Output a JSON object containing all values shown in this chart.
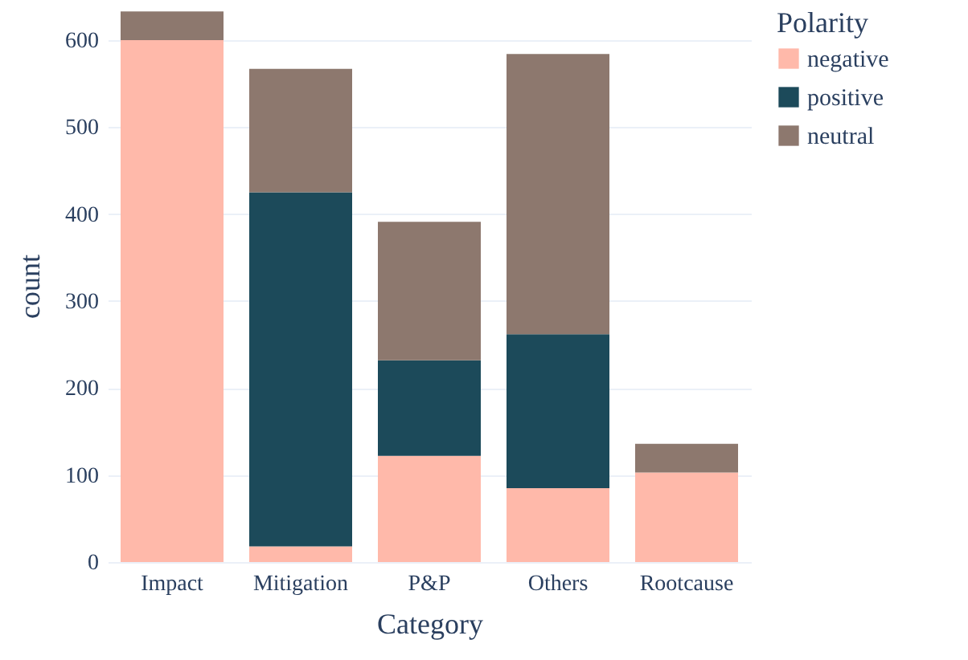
{
  "chart_data": {
    "type": "bar",
    "stacked": true,
    "xlabel": "Category",
    "ylabel": "count",
    "legend_title": "Polarity",
    "legend": "top right",
    "grid": "y",
    "categories": [
      "Impact",
      "Mitigation",
      "P&P",
      "Others",
      "Rootcause"
    ],
    "ylim": [
      0,
      635
    ],
    "yticks": [
      0,
      100,
      200,
      300,
      400,
      500,
      600
    ],
    "series": [
      {
        "name": "negative",
        "color": "#ffb9aa",
        "values": [
          600,
          18,
          122,
          85,
          103
        ]
      },
      {
        "name": "positive",
        "color": "#1c4a5a",
        "values": [
          0,
          407,
          110,
          177,
          0
        ]
      },
      {
        "name": "neutral",
        "color": "#8d786e",
        "values": [
          33,
          142,
          159,
          322,
          33
        ]
      }
    ]
  }
}
